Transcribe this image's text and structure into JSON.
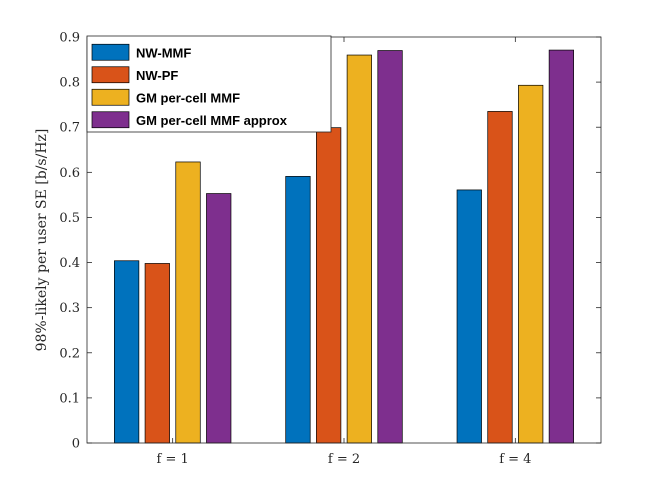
{
  "chart_data": {
    "type": "bar",
    "title": "",
    "xlabel": "",
    "ylabel": "98%-likely per user SE [b/s/Hz]",
    "categories": [
      "f = 1",
      "f = 2",
      "f = 4"
    ],
    "ylim": [
      0,
      0.9
    ],
    "yticks": [
      "0",
      "0.1",
      "0.2",
      "0.3",
      "0.4",
      "0.5",
      "0.6",
      "0.7",
      "0.8",
      "0.9"
    ],
    "grid": false,
    "legend_position": "top-left",
    "series": [
      {
        "name": "NW-MMF",
        "color": "#0072BD",
        "values": [
          0.404,
          0.591,
          0.561
        ]
      },
      {
        "name": "NW-PF",
        "color": "#D95319",
        "values": [
          0.398,
          0.699,
          0.735
        ]
      },
      {
        "name": "GM per-cell MMF",
        "color": "#EDB120",
        "values": [
          0.623,
          0.86,
          0.793
        ]
      },
      {
        "name": "GM per-cell MMF approx",
        "color": "#7E2F8E",
        "values": [
          0.553,
          0.87,
          0.871
        ]
      }
    ]
  }
}
